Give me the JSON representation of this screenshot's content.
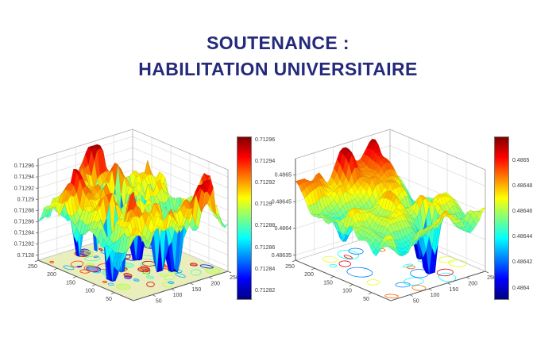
{
  "page": {
    "background_color": "#ffffff"
  },
  "title": {
    "line1": "SOUTENANCE :",
    "line2": "HABILITATION UNIVERSITAIRE",
    "color": "#24297b"
  },
  "chart_data": [
    {
      "id": "left-3d-surface",
      "type": "surface",
      "colormap": "jet",
      "title": "",
      "xlabel": "",
      "ylabel": "",
      "zlabel": "",
      "x_ticks": [
        "50",
        "100",
        "150",
        "200",
        "250"
      ],
      "y_ticks": [
        "250",
        "200",
        "150",
        "100",
        "50"
      ],
      "z_ticks": [
        "0.7128",
        "0.71282",
        "0.71284",
        "0.71286",
        "0.71288",
        "0.7129",
        "0.71292",
        "0.71294",
        "0.71296"
      ],
      "xlim": [
        0,
        250
      ],
      "ylim": [
        0,
        250
      ],
      "zlim": [
        0.7128,
        0.71296
      ],
      "colorbar_ticks_top_to_bottom": [
        "0.71296",
        "0.71294",
        "0.71292",
        "0.7129",
        "0.71288",
        "0.71286",
        "0.71284",
        "0.71282"
      ],
      "floor": "dense filled contour map on pale yellow-green floor",
      "description": "Noisy 3D surface (MATLAB surfc style), jet colormap, many sharp yellow-orange ridges and deep narrow blue pits reaching the floor"
    },
    {
      "id": "right-3d-surface",
      "type": "surface",
      "colormap": "jet",
      "title": "",
      "xlabel": "",
      "ylabel": "",
      "zlabel": "",
      "x_ticks": [
        "50",
        "100",
        "150",
        "200",
        "250"
      ],
      "y_ticks": [
        "250",
        "200",
        "150",
        "100",
        "50"
      ],
      "z_ticks": [
        "0.48635",
        "0.4864",
        "0.48645",
        "0.4865"
      ],
      "xlim": [
        0,
        250
      ],
      "ylim": [
        0,
        250
      ],
      "zlim": [
        0.48635,
        0.4865
      ],
      "colorbar_ticks_top_to_bottom": [
        "0.4865",
        "0.48648",
        "0.48646",
        "0.48644",
        "0.48642",
        "0.4864"
      ],
      "floor": "sparse line contour loops on white floor",
      "description": "Smoother noisy 3D surface, jet colormap, broad red/orange tops with a few deep blue pits"
    }
  ]
}
